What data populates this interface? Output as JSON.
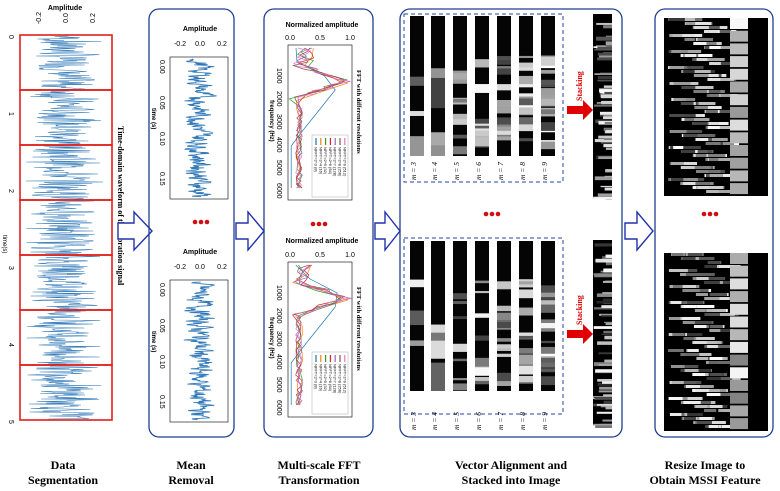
{
  "stage1": {
    "axis_title": "Amplitude",
    "x_ticks": [
      "-0.2",
      "0.0",
      "0.2"
    ],
    "y_label": "time(s)",
    "y_ticks": [
      "0",
      "1",
      "2",
      "3",
      "4",
      "5"
    ],
    "side_label": "Time-domain waveform of the vibration signal",
    "caption_line1": "Data",
    "caption_line2": "Segmentation"
  },
  "stage2": {
    "axis_title": "Amplitude",
    "x_ticks": [
      "-0.2",
      "0.0",
      "0.2"
    ],
    "y_ticks": [
      "0.00",
      "0.05",
      "0.10",
      "0.15"
    ],
    "y_label": "time (s)",
    "caption_line1": "Mean",
    "caption_line2": "Removal"
  },
  "stage3": {
    "axis_title": "Normalized amplitude",
    "x_ticks": [
      "0.0",
      "0.5",
      "1.0"
    ],
    "y_ticks": [
      "1000",
      "2000",
      "3000",
      "4000",
      "5000",
      "6000"
    ],
    "y_label": "frequency (Hz)",
    "side_label": "FFT with different resolutions",
    "legend": [
      "NFFT=2^3 (8)",
      "NFFT=2^4 (16)",
      "NFFT=2^5 (32)",
      "NFFT=2^6 (64)",
      "NFFT=2^7 (128)",
      "NFFT=2^8 (256)",
      "NFFT=2^9 (512)"
    ],
    "caption_line1": "Multi-scale FFT",
    "caption_line2": "Transformation"
  },
  "stage4": {
    "m_labels": [
      "m = 3",
      "m = 4",
      "m = 5",
      "m = 6",
      "m = 7",
      "m = 8",
      "m = 9"
    ],
    "stacking_label": "Stacking",
    "caption_line1": "Vector Alignment and",
    "caption_line2": "Stacked into Image"
  },
  "stage5": {
    "caption_line1": "Resize Image to",
    "caption_line2": "Obtain MSSI Feature"
  },
  "colors": {
    "frame": "#1f3f8f",
    "segment": "#e0201c",
    "signal": "#2f78b8",
    "arrow_outline": "#2233aa",
    "dots": "#d01010",
    "dashed": "#2244aa",
    "stacking_arrow": "#e00000",
    "fft": [
      "#1f77b4",
      "#ff7f0e",
      "#2ca02c",
      "#d62728",
      "#9467bd",
      "#8c564b",
      "#e377c2"
    ]
  },
  "icons": [
    "hollow-right-arrow",
    "red-ellipsis-dots",
    "red-right-arrow"
  ]
}
